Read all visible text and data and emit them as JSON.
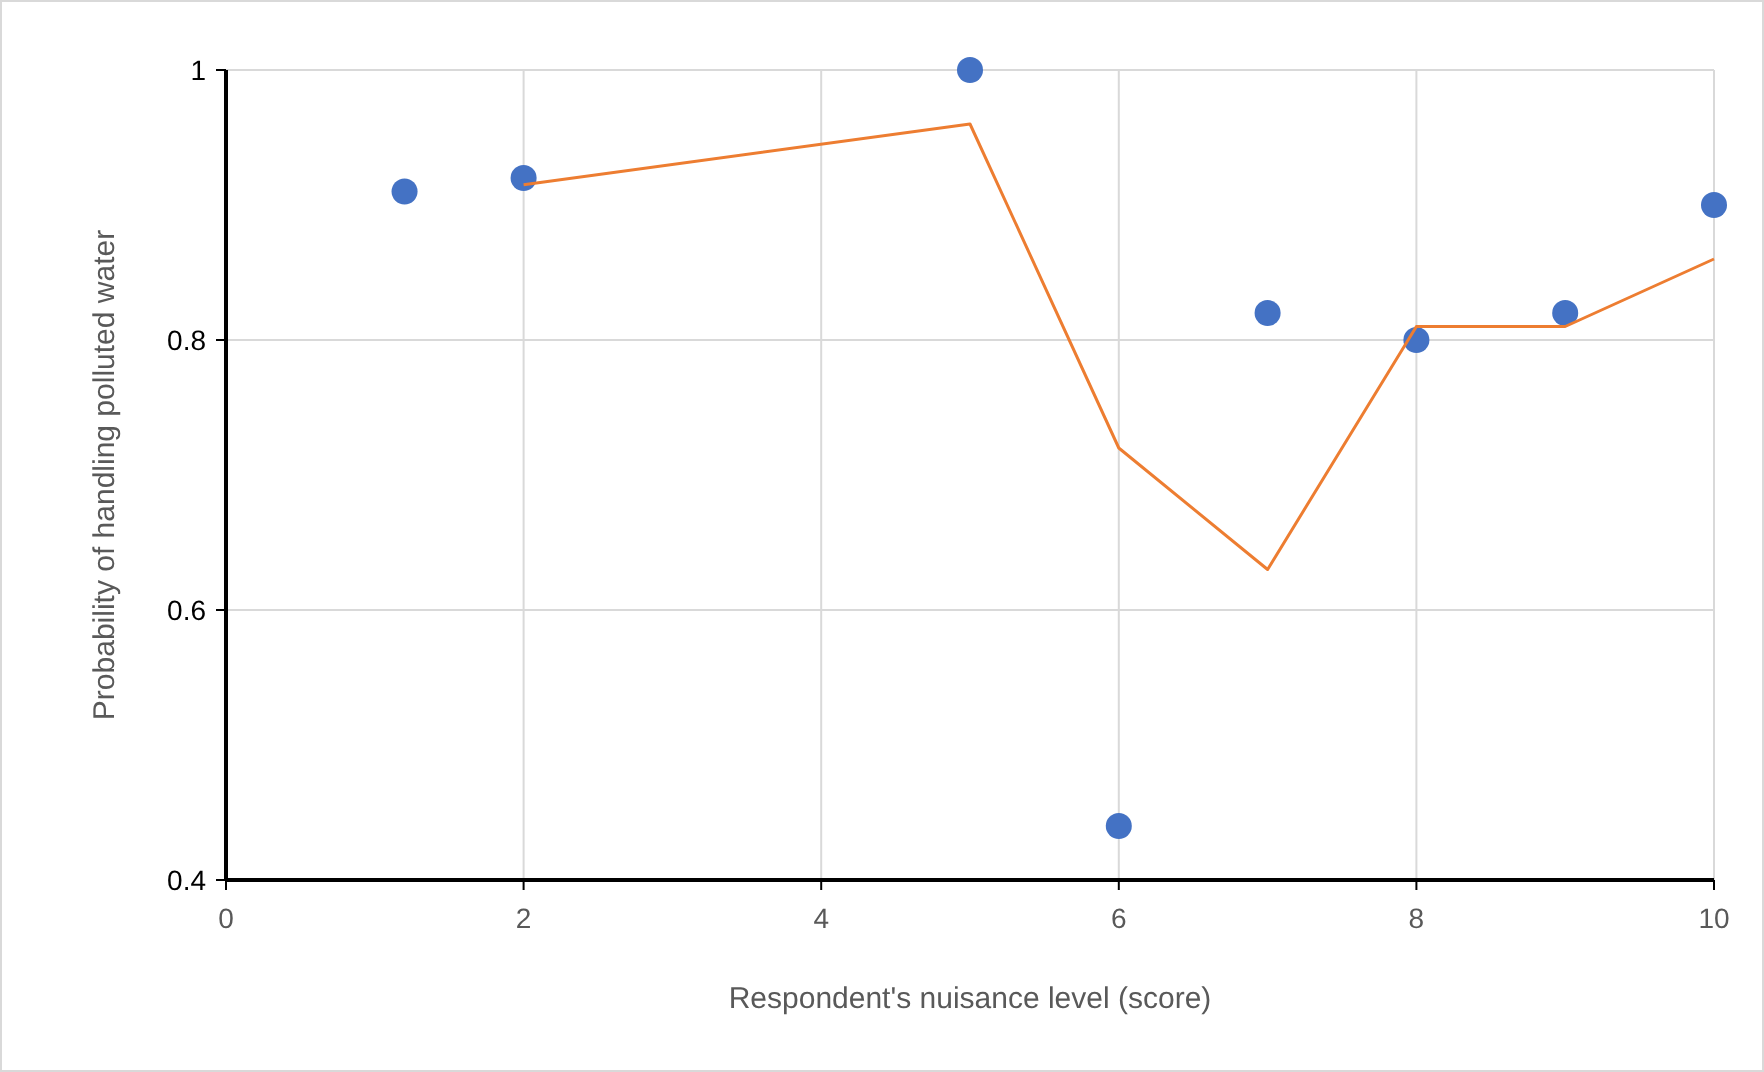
{
  "chart_data": {
    "type": "scatter",
    "xlabel": "Respondent's nuisance level (score)",
    "ylabel": "Probability of handling polluted water",
    "xlim": [
      0,
      10
    ],
    "xticks": [
      0,
      2,
      4,
      6,
      8,
      10
    ],
    "ylim": [
      0.4,
      1
    ],
    "yticks": [
      0.4,
      0.6,
      0.8,
      1
    ],
    "grid": true,
    "series": [
      {
        "color": "#4472c4",
        "marker": "circle",
        "x": [
          1.2,
          2,
          5,
          6,
          7,
          8,
          9,
          10
        ],
        "values": [
          0.91,
          0.92,
          1.0,
          0.44,
          0.82,
          0.8,
          0.82,
          0.9
        ]
      },
      {
        "type": "line",
        "color": "#ed7d31",
        "marker": "none",
        "x": [
          2,
          5,
          6,
          7,
          8,
          9,
          10
        ],
        "values": [
          0.915,
          0.96,
          0.72,
          0.63,
          0.81,
          0.81,
          0.86
        ]
      }
    ]
  }
}
